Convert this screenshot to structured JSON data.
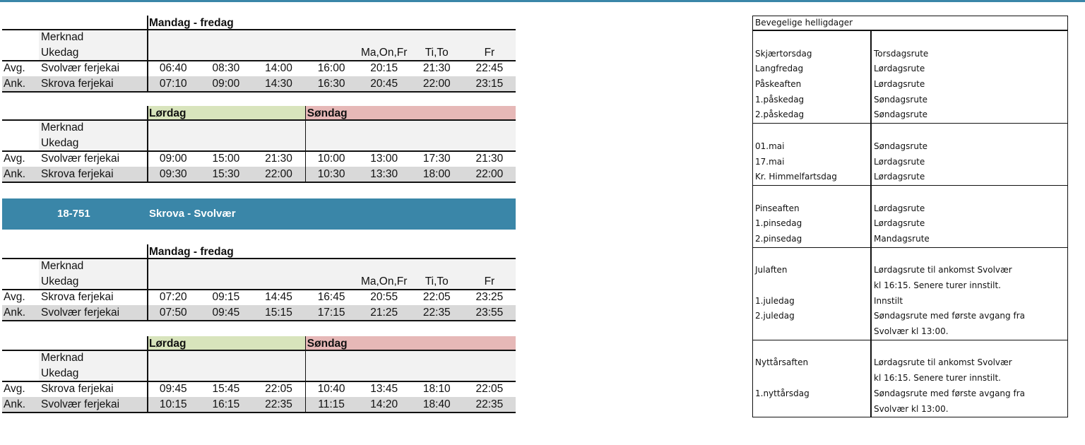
{
  "colors": {
    "accent": "#3a86a8",
    "saturday": "#d8e4bc",
    "sunday": "#e6b8b7",
    "row_alt": "#d9d9d9",
    "note_bg": "#f2f2f2"
  },
  "route_banner": {
    "number": "18-751",
    "name": "Skrova - Svolvær"
  },
  "blocks": [
    {
      "headers": [
        {
          "label": "Mandag - fredag",
          "span": 7,
          "color": ""
        }
      ],
      "merknad": "Merknad",
      "ukedag": "Ukedag",
      "ukedag_values": [
        "",
        "",
        "",
        "",
        "Ma,On,Fr",
        "Ti,To",
        "Fr"
      ],
      "rows": [
        {
          "type": "Avg.",
          "stop": "Svolvær ferjekai",
          "times": [
            "06:40",
            "08:30",
            "14:00",
            "16:00",
            "20:15",
            "21:30",
            "22:45"
          ]
        },
        {
          "type": "Ank.",
          "stop": "Skrova ferjekai",
          "times": [
            "07:10",
            "09:00",
            "14:30",
            "16:30",
            "20:45",
            "22:00",
            "23:15"
          ]
        }
      ]
    },
    {
      "headers": [
        {
          "label": "Lørdag",
          "span": 3,
          "color": "#d8e4bc"
        },
        {
          "label": "Søndag",
          "span": 4,
          "color": "#e6b8b7"
        }
      ],
      "merknad": "Merknad",
      "ukedag": "Ukedag",
      "ukedag_values": [
        "",
        "",
        "",
        "",
        "",
        "",
        ""
      ],
      "rows": [
        {
          "type": "Avg.",
          "stop": "Svolvær ferjekai",
          "times": [
            "09:00",
            "15:00",
            "21:30",
            "10:00",
            "13:00",
            "17:30",
            "21:30"
          ]
        },
        {
          "type": "Ank.",
          "stop": "Skrova ferjekai",
          "times": [
            "09:30",
            "15:30",
            "22:00",
            "10:30",
            "13:30",
            "18:00",
            "22:00"
          ]
        }
      ]
    },
    {
      "headers": [
        {
          "label": "Mandag - fredag",
          "span": 7,
          "color": ""
        }
      ],
      "merknad": "Merknad",
      "ukedag": "Ukedag",
      "ukedag_values": [
        "",
        "",
        "",
        "",
        "Ma,On,Fr",
        "Ti,To",
        "Fr"
      ],
      "rows": [
        {
          "type": "Avg.",
          "stop": "Skrova ferjekai",
          "times": [
            "07:20",
            "09:15",
            "14:45",
            "16:45",
            "20:55",
            "22:05",
            "23:25"
          ]
        },
        {
          "type": "Ank.",
          "stop": "Svolvær ferjekai",
          "times": [
            "07:50",
            "09:45",
            "15:15",
            "17:15",
            "21:25",
            "22:35",
            "23:55"
          ]
        }
      ]
    },
    {
      "headers": [
        {
          "label": "Lørdag",
          "span": 3,
          "color": "#d8e4bc"
        },
        {
          "label": "Søndag",
          "span": 4,
          "color": "#e6b8b7"
        }
      ],
      "merknad": "Merknad",
      "ukedag": "Ukedag",
      "ukedag_values": [
        "",
        "",
        "",
        "",
        "",
        "",
        ""
      ],
      "rows": [
        {
          "type": "Avg.",
          "stop": "Skrova ferjekai",
          "times": [
            "09:45",
            "15:45",
            "22:05",
            "10:40",
            "13:45",
            "18:10",
            "22:05"
          ]
        },
        {
          "type": "Ank.",
          "stop": "Svolvær ferjekai",
          "times": [
            "10:15",
            "16:15",
            "22:35",
            "11:15",
            "14:20",
            "18:40",
            "22:35"
          ]
        }
      ]
    }
  ],
  "holidays": {
    "title": "Bevegelige helligdager",
    "groups": [
      [
        [
          "",
          ""
        ],
        [
          "Skjærtorsdag",
          "Torsdagsrute"
        ],
        [
          "Langfredag",
          "Lørdagsrute"
        ],
        [
          "Påskeaften",
          "Lørdagsrute"
        ],
        [
          "1.påskedag",
          "Søndagsrute"
        ],
        [
          "2.påskedag",
          "Søndagsrute"
        ]
      ],
      [
        [
          "",
          ""
        ],
        [
          "01.mai",
          "Søndagsrute"
        ],
        [
          "17.mai",
          "Lørdagsrute"
        ],
        [
          "Kr. Himmelfartsdag",
          "Lørdagsrute"
        ]
      ],
      [
        [
          "",
          ""
        ],
        [
          "Pinseaften",
          "Lørdagsrute"
        ],
        [
          "1.pinsedag",
          "Lørdagsrute"
        ],
        [
          "2.pinsedag",
          "Mandagsrute"
        ]
      ],
      [
        [
          "",
          ""
        ],
        [
          "Julaften",
          "Lørdagsrute til ankomst Svolvær"
        ],
        [
          "",
          "kl 16:15. Senere turer innstilt."
        ],
        [
          "1.juledag",
          "Innstilt"
        ],
        [
          "2.juledag",
          "Søndagsrute med første avgang fra"
        ],
        [
          "",
          "Svolvær kl 13:00."
        ]
      ],
      [
        [
          "",
          ""
        ],
        [
          "Nyttårsaften",
          "Lørdagsrute til ankomst Svolvær"
        ],
        [
          "",
          "kl 16:15. Senere turer innstilt."
        ],
        [
          "1.nyttårsdag",
          "Søndagsrute med første avgang fra"
        ],
        [
          "",
          "Svolvær kl 13:00."
        ]
      ]
    ]
  }
}
